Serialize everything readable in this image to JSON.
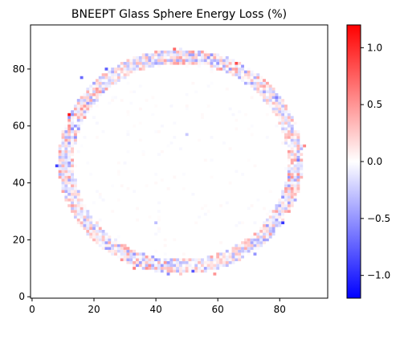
{
  "chart_data": {
    "type": "heatmap",
    "title": "BNEEPT Glass Sphere Energy Loss (%)",
    "xlabel": "",
    "ylabel": "",
    "xlim": [
      -0.5,
      95.5
    ],
    "ylim": [
      -0.5,
      95.5
    ],
    "x_ticks": [
      0,
      20,
      40,
      60,
      80
    ],
    "y_ticks": [
      0,
      20,
      40,
      60,
      80
    ],
    "colorbar": {
      "cmap": "bwr",
      "vmin": -1.2,
      "vmax": 1.2,
      "ticks": [
        -1.0,
        -0.5,
        0.0,
        0.5,
        1.0
      ],
      "tick_labels": [
        "−1.0",
        "−0.5",
        "0.0",
        "0.5",
        "1.0"
      ]
    },
    "grid": false,
    "ring": {
      "center": [
        48,
        47.5
      ],
      "radius_inner": 34.5,
      "radius_outer": 39.5
    },
    "highlight_cells": [
      {
        "x": 12,
        "y": 64,
        "value": 1.1
      },
      {
        "x": 8,
        "y": 46,
        "value": -0.9
      },
      {
        "x": 81,
        "y": 26,
        "value": -0.95
      },
      {
        "x": 66,
        "y": 82,
        "value": 0.85
      },
      {
        "x": 46,
        "y": 87,
        "value": 0.7
      },
      {
        "x": 33,
        "y": 10,
        "value": 0.6
      },
      {
        "x": 52,
        "y": 9,
        "value": -0.8
      },
      {
        "x": 16,
        "y": 77,
        "value": -0.7
      },
      {
        "x": 86,
        "y": 48,
        "value": -0.6
      },
      {
        "x": 88,
        "y": 53,
        "value": 0.55
      },
      {
        "x": 24,
        "y": 80,
        "value": -0.75
      },
      {
        "x": 59,
        "y": 8,
        "value": 0.5
      },
      {
        "x": 13,
        "y": 32,
        "value": 0.45
      },
      {
        "x": 44,
        "y": 8,
        "value": -0.55
      },
      {
        "x": 79,
        "y": 70,
        "value": -0.6
      },
      {
        "x": 72,
        "y": 15,
        "value": -0.5
      },
      {
        "x": 40,
        "y": 26,
        "value": -0.3
      },
      {
        "x": 50,
        "y": 57,
        "value": -0.25
      }
    ]
  }
}
